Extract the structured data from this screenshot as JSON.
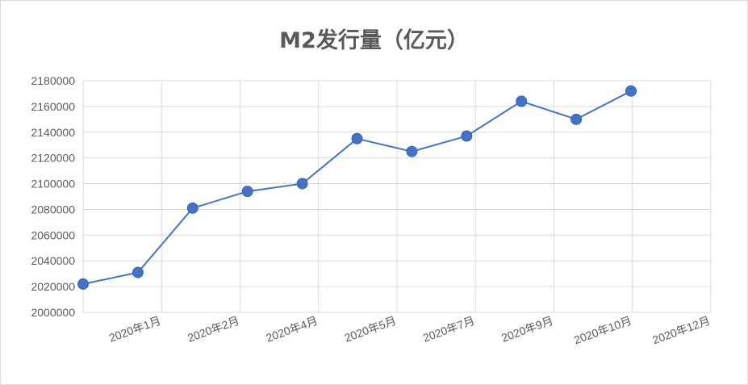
{
  "chart_data": {
    "type": "line",
    "title": "M2发行量（亿元）",
    "ylim": [
      2000000,
      2180000
    ],
    "y_ticks": [
      "2000000",
      "2020000",
      "2040000",
      "2060000",
      "2080000",
      "2100000",
      "2120000",
      "2140000",
      "2160000",
      "2180000"
    ],
    "x_tick_labels": [
      "2020年1月",
      "2020年2月",
      "2020年4月",
      "2020年5月",
      "2020年7月",
      "2020年9月",
      "2020年10月",
      "2020年12月"
    ],
    "series": [
      {
        "values": [
          2022000,
          2031000,
          2081000,
          2094000,
          2100000,
          2135000,
          2125000,
          2137000,
          2164000,
          2150000,
          2172000
        ]
      }
    ],
    "grid": true,
    "color": "#4472c4"
  }
}
